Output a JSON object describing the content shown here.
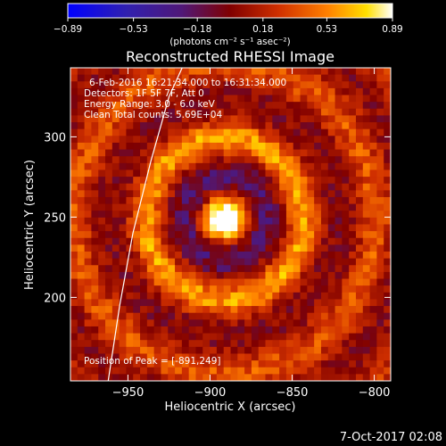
{
  "chart_data": {
    "type": "heatmap",
    "title": "Reconstructed RHESSI Image",
    "xlabel": "Heliocentric X (arcsec)",
    "ylabel": "Heliocentric Y (arcsec)",
    "xlim": [
      -985,
      -790
    ],
    "ylim": [
      148,
      343
    ],
    "x_ticks": [
      -950,
      -900,
      -850,
      -800
    ],
    "x_tick_labels": [
      "−950",
      "−900",
      "−850",
      "−800"
    ],
    "y_ticks": [
      200,
      250,
      300
    ],
    "y_tick_labels": [
      "200",
      "250",
      "300"
    ],
    "colorbar": {
      "range": [
        -0.89,
        0.89
      ],
      "ticks": [
        -0.89,
        -0.53,
        -0.18,
        0.18,
        0.53,
        0.89
      ],
      "tick_labels": [
        "−0.89",
        "−0.53",
        "−0.18",
        "0.18",
        "0.53",
        "0.89"
      ],
      "label": "(photons cm⁻² s⁻¹ asec⁻²)",
      "colors": [
        "#0000ff",
        "#3020b0",
        "#501878",
        "#800000",
        "#d03000",
        "#ff8000",
        "#ffe000",
        "#ffffff"
      ]
    },
    "peak": [
      -891,
      249
    ],
    "limb_curve": [
      [
        -962,
        148
      ],
      [
        -955,
        195
      ],
      [
        -947,
        240
      ],
      [
        -936,
        285
      ],
      [
        -925,
        325
      ],
      [
        -917,
        343
      ]
    ],
    "annotations": {
      "time_range": "6-Feb-2016 16:21:34.000 to 16:31:34.000",
      "detectors": "Detectors: 1F 5F 7F, Att 0",
      "energy": "Energy Range: 3.0 - 6.0 keV",
      "clean": "Clean     Total counts: 5.69E+04",
      "peak_text": "Position of Peak = [-891,249]"
    },
    "grid": false
  },
  "timestamp": "7-Oct-2017 02:08"
}
